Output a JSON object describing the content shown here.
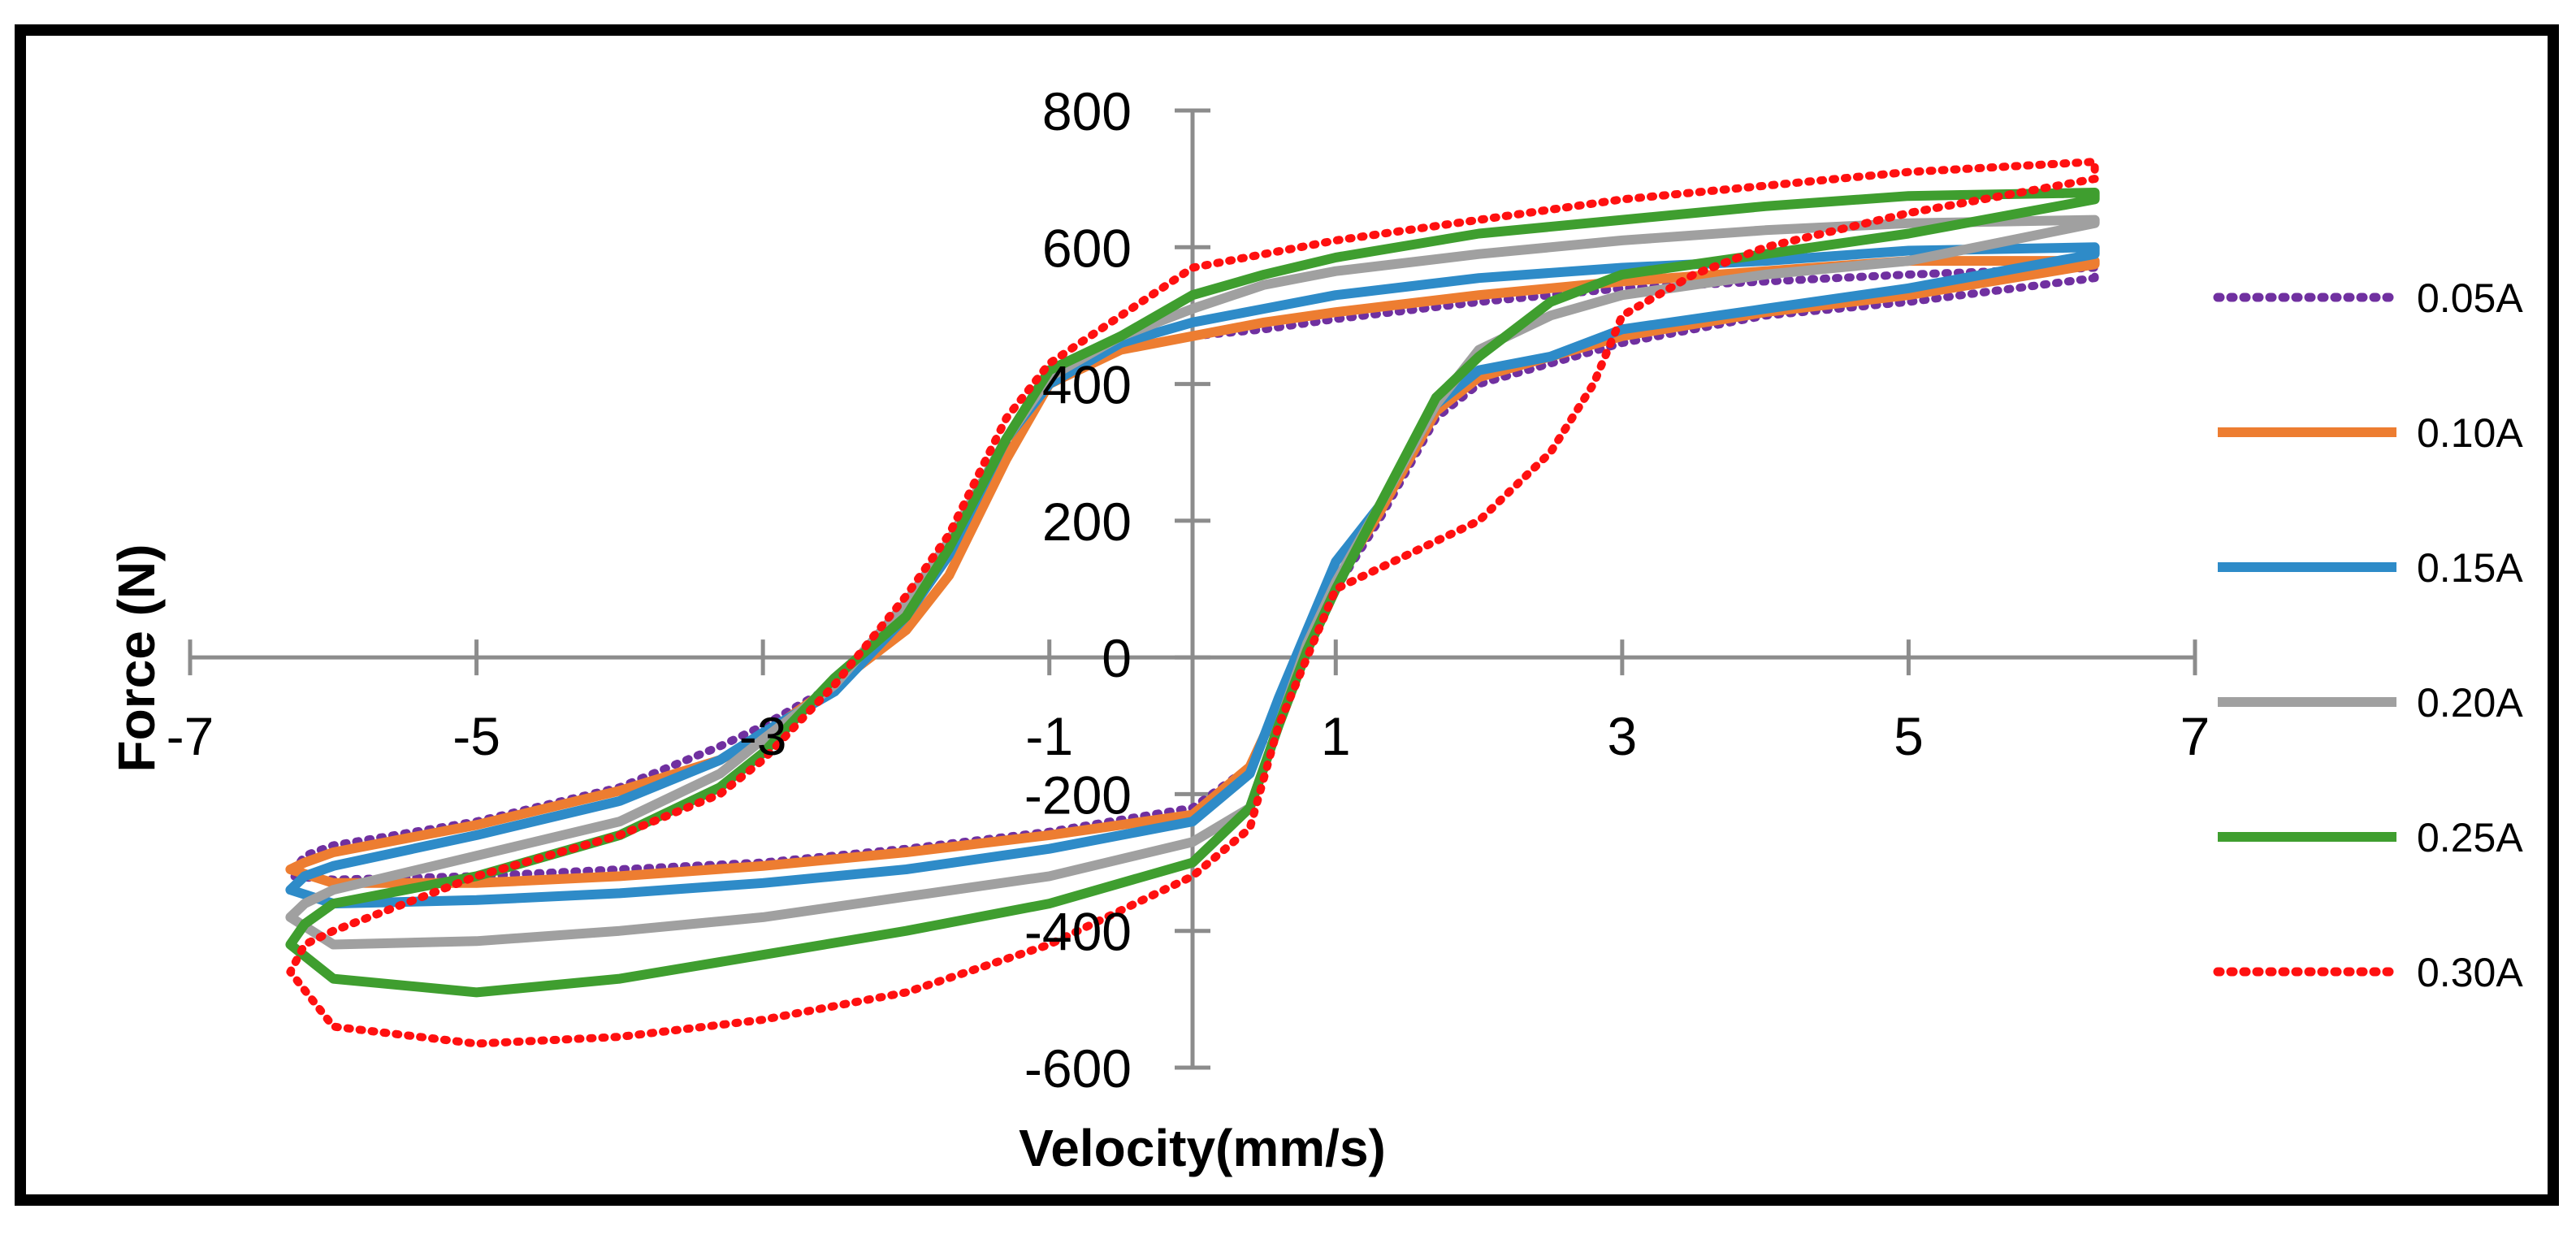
{
  "chart_data": {
    "type": "line",
    "title": "",
    "xlabel": "Velocity(mm/s)",
    "ylabel": "Force (N)",
    "xlim": [
      -7,
      7
    ],
    "ylim": [
      -600,
      800
    ],
    "xticks": [
      "-7",
      "-5",
      "-3",
      "-1",
      "1",
      "3",
      "5",
      "7"
    ],
    "yticks": [
      "-600",
      "-400",
      "-200",
      "0",
      "200",
      "400",
      "600",
      "800"
    ],
    "xtick_values": [
      -7,
      -5,
      -3,
      -1,
      1,
      3,
      5,
      7
    ],
    "ytick_values": [
      -600,
      -400,
      -200,
      0,
      200,
      400,
      600,
      800
    ],
    "legend_position": "right",
    "series": [
      {
        "name": "0.05A",
        "color": "#7030A0",
        "style": "dotted",
        "points": [
          [
            6.3,
            555
          ],
          [
            5,
            520
          ],
          [
            4,
            500
          ],
          [
            3,
            460
          ],
          [
            2.5,
            430
          ],
          [
            2,
            400
          ],
          [
            1.7,
            350
          ],
          [
            1.3,
            200
          ],
          [
            1,
            100
          ],
          [
            0.8,
            20
          ],
          [
            0.6,
            -80
          ],
          [
            0.4,
            -160
          ],
          [
            0,
            -220
          ],
          [
            -1,
            -255
          ],
          [
            -2,
            -280
          ],
          [
            -3,
            -300
          ],
          [
            -4,
            -310
          ],
          [
            -5,
            -320
          ],
          [
            -6,
            -325
          ],
          [
            -6.3,
            -320
          ],
          [
            -6.2,
            -290
          ],
          [
            -6,
            -275
          ],
          [
            -5,
            -240
          ],
          [
            -4,
            -190
          ],
          [
            -3.3,
            -130
          ],
          [
            -3,
            -100
          ],
          [
            -2.5,
            -40
          ],
          [
            -2,
            60
          ],
          [
            -1.7,
            150
          ],
          [
            -1.3,
            300
          ],
          [
            -1,
            410
          ],
          [
            -0.5,
            450
          ],
          [
            0,
            470
          ],
          [
            0.5,
            480
          ],
          [
            1,
            495
          ],
          [
            2,
            520
          ],
          [
            3,
            540
          ],
          [
            4,
            550
          ],
          [
            5,
            560
          ],
          [
            6.3,
            570
          ]
        ]
      },
      {
        "name": "0.10A",
        "color": "#ED7D31",
        "style": "solid",
        "points": [
          [
            6.3,
            575
          ],
          [
            5,
            530
          ],
          [
            4,
            505
          ],
          [
            3,
            470
          ],
          [
            2.5,
            440
          ],
          [
            2,
            410
          ],
          [
            1.7,
            360
          ],
          [
            1.3,
            210
          ],
          [
            1,
            110
          ],
          [
            0.8,
            30
          ],
          [
            0.6,
            -70
          ],
          [
            0.4,
            -160
          ],
          [
            0,
            -230
          ],
          [
            -1,
            -260
          ],
          [
            -2,
            -285
          ],
          [
            -3,
            -305
          ],
          [
            -4,
            -320
          ],
          [
            -5,
            -330
          ],
          [
            -6,
            -330
          ],
          [
            -6.3,
            -310
          ],
          [
            -6.2,
            -300
          ],
          [
            -6,
            -285
          ],
          [
            -5,
            -245
          ],
          [
            -4,
            -195
          ],
          [
            -3.3,
            -150
          ],
          [
            -3,
            -115
          ],
          [
            -2.5,
            -40
          ],
          [
            -2,
            40
          ],
          [
            -1.7,
            120
          ],
          [
            -1.3,
            290
          ],
          [
            -1,
            400
          ],
          [
            -0.5,
            450
          ],
          [
            0,
            470
          ],
          [
            0.5,
            490
          ],
          [
            1,
            505
          ],
          [
            2,
            530
          ],
          [
            3,
            550
          ],
          [
            4,
            565
          ],
          [
            5,
            580
          ],
          [
            6.3,
            580
          ]
        ]
      },
      {
        "name": "0.15A",
        "color": "#2E8BC8",
        "style": "solid",
        "points": [
          [
            6.3,
            590
          ],
          [
            5,
            540
          ],
          [
            4,
            510
          ],
          [
            3,
            480
          ],
          [
            2.5,
            440
          ],
          [
            2,
            420
          ],
          [
            1.7,
            370
          ],
          [
            1.3,
            220
          ],
          [
            1,
            140
          ],
          [
            0.8,
            40
          ],
          [
            0.6,
            -60
          ],
          [
            0.4,
            -170
          ],
          [
            0,
            -240
          ],
          [
            -1,
            -280
          ],
          [
            -2,
            -310
          ],
          [
            -3,
            -330
          ],
          [
            -4,
            -345
          ],
          [
            -5,
            -355
          ],
          [
            -6,
            -360
          ],
          [
            -6.3,
            -340
          ],
          [
            -6.2,
            -320
          ],
          [
            -6,
            -305
          ],
          [
            -5,
            -260
          ],
          [
            -4,
            -210
          ],
          [
            -3.3,
            -150
          ],
          [
            -3,
            -110
          ],
          [
            -2.5,
            -50
          ],
          [
            -2,
            60
          ],
          [
            -1.7,
            150
          ],
          [
            -1.3,
            320
          ],
          [
            -1,
            400
          ],
          [
            -0.5,
            460
          ],
          [
            0,
            490
          ],
          [
            0.5,
            510
          ],
          [
            1,
            530
          ],
          [
            2,
            555
          ],
          [
            3,
            570
          ],
          [
            4,
            580
          ],
          [
            5,
            595
          ],
          [
            6.3,
            600
          ]
        ]
      },
      {
        "name": "0.20A",
        "color": "#A0A0A0",
        "style": "solid",
        "points": [
          [
            6.3,
            635
          ],
          [
            5,
            580
          ],
          [
            4,
            560
          ],
          [
            3,
            530
          ],
          [
            2.5,
            500
          ],
          [
            2,
            450
          ],
          [
            1.7,
            370
          ],
          [
            1.3,
            220
          ],
          [
            1,
            110
          ],
          [
            0.8,
            20
          ],
          [
            0.6,
            -100
          ],
          [
            0.4,
            -220
          ],
          [
            0,
            -270
          ],
          [
            -1,
            -320
          ],
          [
            -2,
            -350
          ],
          [
            -3,
            -380
          ],
          [
            -4,
            -400
          ],
          [
            -5,
            -415
          ],
          [
            -6,
            -420
          ],
          [
            -6.3,
            -380
          ],
          [
            -6.2,
            -360
          ],
          [
            -6,
            -340
          ],
          [
            -5,
            -290
          ],
          [
            -4,
            -240
          ],
          [
            -3.3,
            -170
          ],
          [
            -3,
            -120
          ],
          [
            -2.5,
            -40
          ],
          [
            -2,
            80
          ],
          [
            -1.7,
            170
          ],
          [
            -1.3,
            320
          ],
          [
            -1,
            410
          ],
          [
            -0.5,
            470
          ],
          [
            0,
            510
          ],
          [
            0.5,
            545
          ],
          [
            1,
            565
          ],
          [
            2,
            590
          ],
          [
            3,
            610
          ],
          [
            4,
            625
          ],
          [
            5,
            635
          ],
          [
            6.3,
            640
          ]
        ]
      },
      {
        "name": "0.25A",
        "color": "#3F9E2F",
        "style": "solid",
        "points": [
          [
            6.3,
            670
          ],
          [
            5,
            620
          ],
          [
            4,
            590
          ],
          [
            3,
            560
          ],
          [
            2.5,
            520
          ],
          [
            2,
            440
          ],
          [
            1.7,
            380
          ],
          [
            1.3,
            220
          ],
          [
            1,
            100
          ],
          [
            0.8,
            10
          ],
          [
            0.6,
            -100
          ],
          [
            0.4,
            -220
          ],
          [
            0,
            -300
          ],
          [
            -1,
            -360
          ],
          [
            -2,
            -400
          ],
          [
            -3,
            -435
          ],
          [
            -4,
            -470
          ],
          [
            -5,
            -490
          ],
          [
            -6,
            -470
          ],
          [
            -6.3,
            -420
          ],
          [
            -6.2,
            -390
          ],
          [
            -6,
            -360
          ],
          [
            -5,
            -320
          ],
          [
            -4,
            -260
          ],
          [
            -3.3,
            -190
          ],
          [
            -3,
            -140
          ],
          [
            -2.5,
            -30
          ],
          [
            -2,
            60
          ],
          [
            -1.7,
            160
          ],
          [
            -1.3,
            320
          ],
          [
            -1,
            420
          ],
          [
            -0.5,
            470
          ],
          [
            0,
            530
          ],
          [
            0.5,
            560
          ],
          [
            1,
            585
          ],
          [
            2,
            620
          ],
          [
            3,
            640
          ],
          [
            4,
            660
          ],
          [
            5,
            675
          ],
          [
            6.3,
            680
          ]
        ]
      },
      {
        "name": "0.30A",
        "color": "#FF1010",
        "style": "dotted",
        "points": [
          [
            6.3,
            700
          ],
          [
            5,
            650
          ],
          [
            4,
            600
          ],
          [
            3.5,
            560
          ],
          [
            3,
            500
          ],
          [
            2.8,
            400
          ],
          [
            2.5,
            300
          ],
          [
            2,
            200
          ],
          [
            1.5,
            150
          ],
          [
            1,
            100
          ],
          [
            0.8,
            0
          ],
          [
            0.6,
            -100
          ],
          [
            0.4,
            -250
          ],
          [
            0,
            -320
          ],
          [
            -1,
            -420
          ],
          [
            -2,
            -490
          ],
          [
            -3,
            -530
          ],
          [
            -4,
            -555
          ],
          [
            -5,
            -565
          ],
          [
            -6,
            -540
          ],
          [
            -6.3,
            -460
          ],
          [
            -6.2,
            -420
          ],
          [
            -6,
            -400
          ],
          [
            -5,
            -320
          ],
          [
            -4,
            -260
          ],
          [
            -3.3,
            -200
          ],
          [
            -3,
            -150
          ],
          [
            -2.5,
            -40
          ],
          [
            -2,
            90
          ],
          [
            -1.7,
            180
          ],
          [
            -1.3,
            350
          ],
          [
            -1,
            430
          ],
          [
            -0.5,
            500
          ],
          [
            0,
            570
          ],
          [
            0.5,
            590
          ],
          [
            1,
            610
          ],
          [
            2,
            640
          ],
          [
            3,
            670
          ],
          [
            4,
            690
          ],
          [
            5,
            710
          ],
          [
            6.3,
            725
          ]
        ]
      }
    ]
  }
}
